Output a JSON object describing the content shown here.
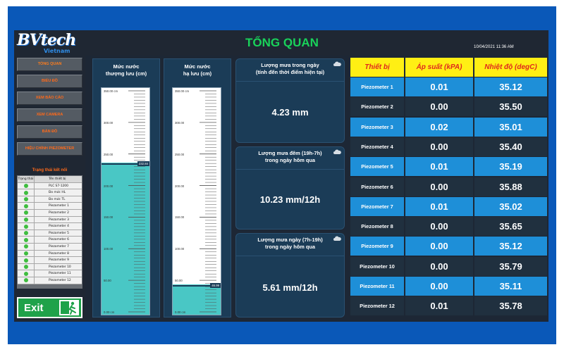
{
  "app": {
    "title": "TỔNG QUAN",
    "datetime": "10/04/2021 11:36 AM",
    "logo_text": "BVtech",
    "logo_sub": "Vietnam"
  },
  "sidebar": {
    "items": [
      {
        "label": "TỔNG QUAN",
        "active": true
      },
      {
        "label": "BIỂU ĐỒ"
      },
      {
        "label": "XEM BÁO CÁO"
      },
      {
        "label": "XEM CAMERA"
      },
      {
        "label": "BẢN ĐỒ"
      },
      {
        "label": "HIỆU CHỈNH PIEZOMETER"
      }
    ],
    "status_title": "Trạng thái kết nối",
    "status_headers": [
      "Trạng thái",
      "Tên thiết bị"
    ],
    "devices": [
      "PLC S7-1200",
      "Đo mức HL",
      "Đo mức TL",
      "Piezometer 1",
      "Piezometer 2",
      "Piezometer 3",
      "Piezometer 4",
      "Piezometer 5",
      "Piezometer 6",
      "Piezometer 7",
      "Piezometer 8",
      "Piezometer 9",
      "Piezometer 10",
      "Piezometer 11",
      "Piezometer 12"
    ],
    "status_color": "#3fbd3f",
    "exit_label": "Exit"
  },
  "tanks": [
    {
      "title_line1": "Mức nước",
      "title_line2": "thượng lưu (cm)",
      "level": 232.84,
      "level_label": "232.84",
      "max": 350,
      "ticks": [
        "350.00 cm",
        "300.00",
        "250.00",
        "200.00",
        "150.00",
        "100.00",
        "50.00",
        "0.00 cm"
      ]
    },
    {
      "title_line1": "Mức nước",
      "title_line2": "hạ lưu (cm)",
      "level": 46.99,
      "level_label": "46.99",
      "max": 350,
      "ticks": [
        "350.00 cm",
        "300.00",
        "250.00",
        "200.00",
        "150.00",
        "100.00",
        "50.00",
        "0.00 cm"
      ]
    }
  ],
  "rain": [
    {
      "line1": "Lượng mưa trong ngày",
      "line2": "(tính đến thời điểm hiện tại)",
      "value": "4.23 mm"
    },
    {
      "line1": "Lượng mưa đêm (19h-7h)",
      "line2": "trong ngày hôm qua",
      "value": "10.23 mm/12h"
    },
    {
      "line1": "Lượng mưa ngày (7h-19h)",
      "line2": "trong ngày hôm qua",
      "value": "5.61 mm/12h"
    }
  ],
  "table": {
    "headers": [
      "Thiết bị",
      "Áp suất (kPA)",
      "Nhiệt độ (degC)"
    ],
    "rows": [
      {
        "device": "Piezometer 1",
        "pressure": "0.01",
        "temp": "35.12"
      },
      {
        "device": "Piezometer 2",
        "pressure": "0.00",
        "temp": "35.50"
      },
      {
        "device": "Piezometer 3",
        "pressure": "0.02",
        "temp": "35.01"
      },
      {
        "device": "Piezometer 4",
        "pressure": "0.00",
        "temp": "35.40"
      },
      {
        "device": "Piezometer 5",
        "pressure": "0.01",
        "temp": "35.19"
      },
      {
        "device": "Piezometer 6",
        "pressure": "0.00",
        "temp": "35.88"
      },
      {
        "device": "Piezometer 7",
        "pressure": "0.01",
        "temp": "35.02"
      },
      {
        "device": "Piezometer 8",
        "pressure": "0.00",
        "temp": "35.65"
      },
      {
        "device": "Piezometer 9",
        "pressure": "0.00",
        "temp": "35.12"
      },
      {
        "device": "Piezometer 10",
        "pressure": "0.00",
        "temp": "35.79"
      },
      {
        "device": "Piezometer 11",
        "pressure": "0.00",
        "temp": "35.11"
      },
      {
        "device": "Piezometer 12",
        "pressure": "0.01",
        "temp": "35.78"
      }
    ]
  },
  "colors": {
    "title_green": "#19d25a",
    "nav_orange": "#ff6a1a",
    "table_header_bg": "#ffef14",
    "table_header_text": "#e0281c",
    "row_blue": "#1e8fd8",
    "row_dark": "#20303f",
    "water": "#49c7c5"
  }
}
